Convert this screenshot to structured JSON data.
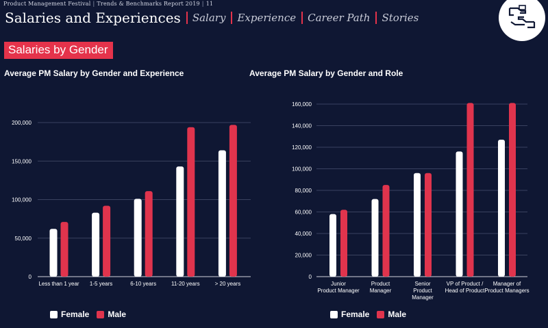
{
  "header": {
    "report_name": "Product Management Festival",
    "report_subtitle": "Trends & Benchmarks Report 2019",
    "page_number": "11",
    "title": "Salaries and Experiences",
    "tabs": [
      "Salary",
      "Experience",
      "Career Path",
      "Stories"
    ]
  },
  "section": {
    "badge": "Salaries by Gender"
  },
  "colors": {
    "female": "#ffffff",
    "male": "#e0344d",
    "accent": "#e5334b",
    "background": "#0f1733"
  },
  "chart_data": [
    {
      "type": "bar",
      "title": "Average PM Salary by Gender and Experience",
      "categories": [
        "Less than 1 year",
        "1-5 years",
        "6-10 years",
        "11-20 years",
        "> 20 years"
      ],
      "series": [
        {
          "name": "Female",
          "values": [
            62000,
            83000,
            101000,
            143000,
            164000
          ]
        },
        {
          "name": "Male",
          "values": [
            71000,
            92000,
            111000,
            194000,
            197000
          ]
        }
      ],
      "ylim": [
        0,
        200000
      ],
      "yticks": [
        0,
        50000,
        100000,
        150000,
        200000
      ],
      "ytick_labels": [
        "0",
        "50,000",
        "100,000",
        "150,000",
        "200,000"
      ],
      "xlabel": "",
      "ylabel": "",
      "legend": "bottom-left",
      "grid": true
    },
    {
      "type": "bar",
      "title": "Average PM Salary by Gender and Role",
      "categories": [
        [
          "Junior",
          "Product Manager"
        ],
        [
          "Product",
          "Manager"
        ],
        [
          "Senior",
          "Product",
          "Manager"
        ],
        [
          "VP of Product /",
          "Head of Product"
        ],
        [
          "Manager of",
          "Product Managers"
        ]
      ],
      "series": [
        {
          "name": "Female",
          "values": [
            58000,
            72000,
            96000,
            116000,
            127000
          ]
        },
        {
          "name": "Male",
          "values": [
            62000,
            85000,
            96000,
            161000,
            161000
          ]
        }
      ],
      "ylim": [
        0,
        160000
      ],
      "yticks": [
        0,
        20000,
        40000,
        60000,
        80000,
        100000,
        120000,
        140000,
        160000
      ],
      "ytick_labels": [
        "0",
        "20,000",
        "40,000",
        "60,000",
        "80,000",
        "100,000",
        "120,000",
        "140,000",
        "160,000"
      ],
      "xlabel": "",
      "ylabel": "",
      "legend": "bottom-center",
      "grid": true
    }
  ]
}
